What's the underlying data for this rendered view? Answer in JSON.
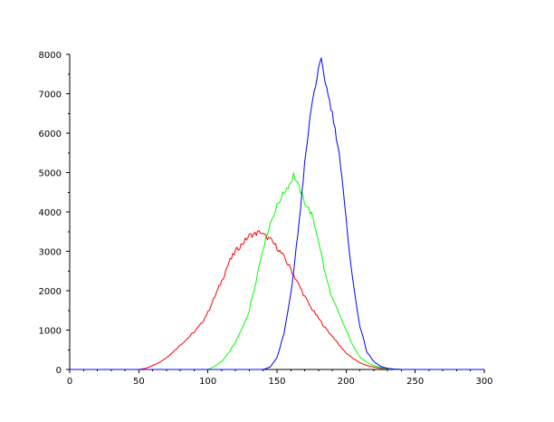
{
  "chart_data": {
    "type": "line",
    "title": "",
    "xlabel": "",
    "ylabel": "",
    "xlim": [
      0,
      300
    ],
    "ylim": [
      0,
      8000
    ],
    "x_ticks": [
      0,
      50,
      100,
      150,
      200,
      250,
      300
    ],
    "y_ticks": [
      0,
      1000,
      2000,
      3000,
      4000,
      5000,
      6000,
      7000,
      8000
    ],
    "grid": false,
    "legend": "none",
    "series": [
      {
        "color": "#ff0000",
        "points": [
          [
            0,
            0
          ],
          [
            50,
            0
          ],
          [
            55,
            30
          ],
          [
            60,
            100
          ],
          [
            65,
            180
          ],
          [
            70,
            300
          ],
          [
            75,
            450
          ],
          [
            80,
            620
          ],
          [
            85,
            780
          ],
          [
            90,
            950
          ],
          [
            95,
            1150
          ],
          [
            100,
            1450
          ],
          [
            105,
            1850
          ],
          [
            110,
            2250
          ],
          [
            115,
            2700
          ],
          [
            120,
            3000
          ],
          [
            125,
            3200
          ],
          [
            130,
            3400
          ],
          [
            135,
            3450
          ],
          [
            138,
            3500
          ],
          [
            140,
            3420
          ],
          [
            145,
            3300
          ],
          [
            150,
            3100
          ],
          [
            155,
            2850
          ],
          [
            160,
            2550
          ],
          [
            165,
            2200
          ],
          [
            170,
            1850
          ],
          [
            175,
            1550
          ],
          [
            180,
            1300
          ],
          [
            185,
            1050
          ],
          [
            190,
            850
          ],
          [
            195,
            620
          ],
          [
            200,
            420
          ],
          [
            205,
            280
          ],
          [
            210,
            170
          ],
          [
            215,
            100
          ],
          [
            220,
            60
          ],
          [
            225,
            30
          ],
          [
            230,
            15
          ],
          [
            240,
            0
          ],
          [
            300,
            0
          ]
        ]
      },
      {
        "color": "#00ff00",
        "points": [
          [
            0,
            0
          ],
          [
            100,
            0
          ],
          [
            105,
            80
          ],
          [
            110,
            200
          ],
          [
            115,
            420
          ],
          [
            120,
            700
          ],
          [
            125,
            1050
          ],
          [
            130,
            1500
          ],
          [
            135,
            2300
          ],
          [
            140,
            3100
          ],
          [
            145,
            3700
          ],
          [
            150,
            4150
          ],
          [
            155,
            4500
          ],
          [
            160,
            4750
          ],
          [
            162,
            4950
          ],
          [
            165,
            4700
          ],
          [
            170,
            4250
          ],
          [
            175,
            3950
          ],
          [
            180,
            3300
          ],
          [
            185,
            2400
          ],
          [
            190,
            1800
          ],
          [
            195,
            1400
          ],
          [
            200,
            1000
          ],
          [
            205,
            600
          ],
          [
            210,
            320
          ],
          [
            215,
            180
          ],
          [
            220,
            100
          ],
          [
            225,
            50
          ],
          [
            230,
            20
          ],
          [
            240,
            0
          ],
          [
            300,
            0
          ]
        ]
      },
      {
        "color": "#0000ff",
        "points": [
          [
            0,
            0
          ],
          [
            140,
            0
          ],
          [
            145,
            60
          ],
          [
            150,
            300
          ],
          [
            155,
            900
          ],
          [
            160,
            1900
          ],
          [
            165,
            3400
          ],
          [
            170,
            5200
          ],
          [
            175,
            6700
          ],
          [
            180,
            7600
          ],
          [
            182,
            7850
          ],
          [
            185,
            7300
          ],
          [
            190,
            6500
          ],
          [
            195,
            5500
          ],
          [
            200,
            3800
          ],
          [
            205,
            2200
          ],
          [
            210,
            1100
          ],
          [
            215,
            450
          ],
          [
            220,
            200
          ],
          [
            225,
            80
          ],
          [
            230,
            30
          ],
          [
            235,
            10
          ],
          [
            240,
            0
          ],
          [
            300,
            0
          ]
        ]
      }
    ]
  }
}
